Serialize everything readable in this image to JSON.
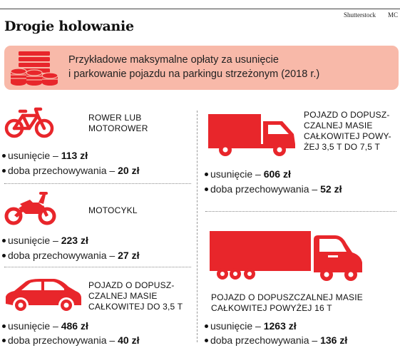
{
  "header": {
    "credit": "Shutterstock",
    "initials": "MC",
    "title": "Drogie holowanie"
  },
  "banner": {
    "line1": "Przykładowe maksymalne opłaty za usunięcie",
    "line2": "i parkowanie pojazdu na parkingu strzeżonym (2018 r.)",
    "icon": "money-coins-icon"
  },
  "colors": {
    "accent": "#e8262b",
    "banner_bg": "#f8b9a9"
  },
  "labels": {
    "removal": "usunięcie – ",
    "storage": "doba przechowywania – "
  },
  "vehicles": [
    {
      "name": [
        "ROWER LUB",
        "MOTOROWER"
      ],
      "removal": "113 zł",
      "storage": "20 zł",
      "icon": "bicycle-icon"
    },
    {
      "name": [
        "MOTOCYKL"
      ],
      "removal": "223 zł",
      "storage": "27 zł",
      "icon": "motorcycle-icon"
    },
    {
      "name": [
        "POJAZD O DOPUSZ-",
        "CZALNEJ MASIE",
        "CAŁKOWITEJ DO 3,5 T"
      ],
      "removal": "486 zł",
      "storage": "40 zł",
      "icon": "car-icon"
    },
    {
      "name": [
        "POJAZD O DOPUSZ-",
        "CZALNEJ MASIE",
        "CAŁKOWITEJ POWY-",
        "ŻEJ 3,5 T DO 7,5 T"
      ],
      "removal": "606 zł",
      "storage": "52 zł",
      "icon": "van-truck-icon"
    },
    {
      "name": [
        "POJAZD O DOPUSZCZALNEJ MASIE",
        "CAŁKOWITEJ POWYŻEJ 16 T"
      ],
      "removal": "1263 zł",
      "storage": "136 zł",
      "icon": "semi-truck-icon"
    }
  ]
}
